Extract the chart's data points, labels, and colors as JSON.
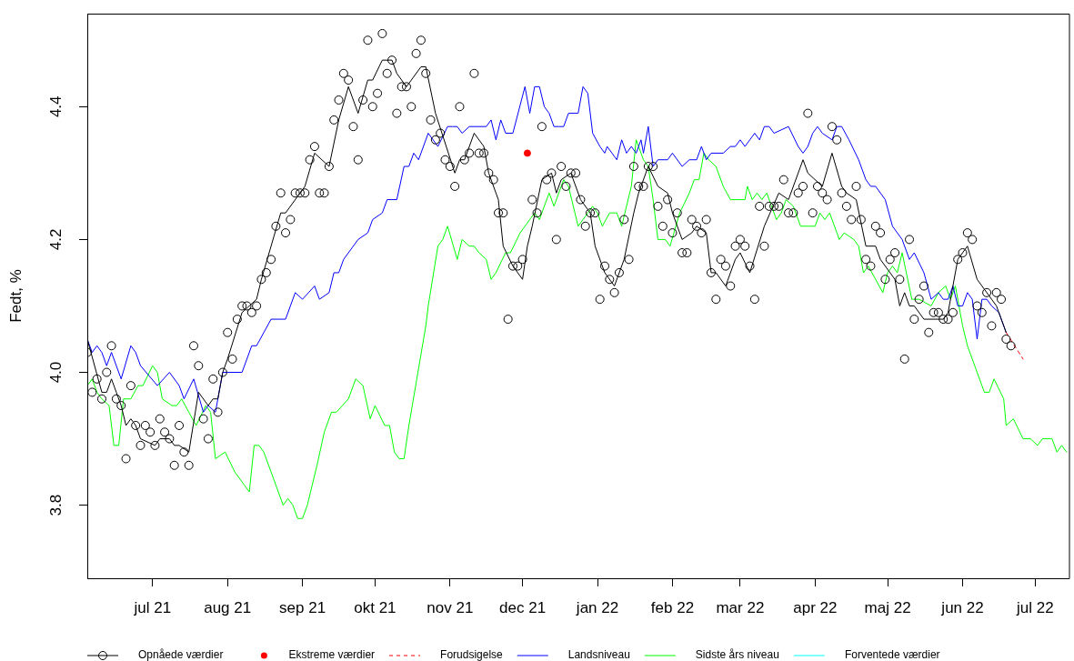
{
  "chart_data": {
    "type": "line",
    "ylabel": "Fedt, %",
    "xlim": [
      "2021-06-04",
      "2022-07-15"
    ],
    "xticks": [
      {
        "value": "2021-07-01",
        "label": "jul 21"
      },
      {
        "value": "2021-08-01",
        "label": "aug 21"
      },
      {
        "value": "2021-09-01",
        "label": "sep 21"
      },
      {
        "value": "2021-10-01",
        "label": "okt 21"
      },
      {
        "value": "2021-11-01",
        "label": "nov 21"
      },
      {
        "value": "2021-12-01",
        "label": "dec 21"
      },
      {
        "value": "2022-01-01",
        "label": "jan 22"
      },
      {
        "value": "2022-02-01",
        "label": "feb 22"
      },
      {
        "value": "2022-03-01",
        "label": "mar 22"
      },
      {
        "value": "2022-04-01",
        "label": "apr 22"
      },
      {
        "value": "2022-05-01",
        "label": "maj 22"
      },
      {
        "value": "2022-06-01",
        "label": "jun 22"
      },
      {
        "value": "2022-07-01",
        "label": "jul 22"
      }
    ],
    "ylim": [
      3.69,
      4.54
    ],
    "yticks": [
      3.8,
      {
        "value": 4,
        "label": "4.0"
      },
      4.2,
      4.4
    ],
    "legend": "bottom",
    "series": [
      {
        "name": "Opnåede værdier",
        "type": "scatter",
        "color": "#000000",
        "marker": "circle",
        "x": [
          "2021-06-04",
          "2021-06-06",
          "2021-06-08",
          "2021-06-10",
          "2021-06-12",
          "2021-06-14",
          "2021-06-16",
          "2021-06-18",
          "2021-06-20",
          "2021-06-22",
          "2021-06-24",
          "2021-06-26",
          "2021-06-28",
          "2021-06-30",
          "2021-07-02",
          "2021-07-04",
          "2021-07-06",
          "2021-07-08",
          "2021-07-10",
          "2021-07-12",
          "2021-07-14",
          "2021-07-16",
          "2021-07-18",
          "2021-07-20",
          "2021-07-22",
          "2021-07-24",
          "2021-07-26",
          "2021-07-28",
          "2021-07-30",
          "2021-08-01",
          "2021-08-03",
          "2021-08-05",
          "2021-08-07",
          "2021-08-09",
          "2021-08-11",
          "2021-08-13",
          "2021-08-15",
          "2021-08-17",
          "2021-08-19",
          "2021-08-21",
          "2021-08-23",
          "2021-08-25",
          "2021-08-27",
          "2021-08-29",
          "2021-08-31",
          "2021-09-02",
          "2021-09-04",
          "2021-09-06",
          "2021-09-08",
          "2021-09-10",
          "2021-09-12",
          "2021-09-14",
          "2021-09-16",
          "2021-09-18",
          "2021-09-20",
          "2021-09-22",
          "2021-09-24",
          "2021-09-26",
          "2021-09-28",
          "2021-09-30",
          "2021-10-02",
          "2021-10-04",
          "2021-10-06",
          "2021-10-08",
          "2021-10-10",
          "2021-10-12",
          "2021-10-14",
          "2021-10-16",
          "2021-10-18",
          "2021-10-20",
          "2021-10-22",
          "2021-10-24",
          "2021-10-26",
          "2021-10-28",
          "2021-10-30",
          "2021-11-01",
          "2021-11-03",
          "2021-11-05",
          "2021-11-07",
          "2021-11-09",
          "2021-11-11",
          "2021-11-13",
          "2021-11-15",
          "2021-11-17",
          "2021-11-19",
          "2021-11-21",
          "2021-11-23",
          "2021-11-25",
          "2021-11-27",
          "2021-11-29",
          "2021-12-01",
          "2021-12-03",
          "2021-12-05",
          "2021-12-07",
          "2021-12-09",
          "2021-12-11",
          "2021-12-13",
          "2021-12-15",
          "2021-12-17",
          "2021-12-19",
          "2021-12-21",
          "2021-12-23",
          "2021-12-25",
          "2021-12-27",
          "2021-12-29",
          "2021-12-31",
          "2022-01-02",
          "2022-01-04",
          "2022-01-06",
          "2022-01-08",
          "2022-01-10",
          "2022-01-12",
          "2022-01-14",
          "2022-01-16",
          "2022-01-18",
          "2022-01-20",
          "2022-01-22",
          "2022-01-24",
          "2022-01-26",
          "2022-01-28",
          "2022-01-30",
          "2022-02-01",
          "2022-02-03",
          "2022-02-05",
          "2022-02-07",
          "2022-02-09",
          "2022-02-11",
          "2022-02-13",
          "2022-02-15",
          "2022-02-17",
          "2022-02-19",
          "2022-02-21",
          "2022-02-23",
          "2022-02-25",
          "2022-02-27",
          "2022-03-01",
          "2022-03-03",
          "2022-03-05",
          "2022-03-07",
          "2022-03-09",
          "2022-03-11",
          "2022-03-13",
          "2022-03-15",
          "2022-03-17",
          "2022-03-19",
          "2022-03-21",
          "2022-03-23",
          "2022-03-25",
          "2022-03-27",
          "2022-03-29",
          "2022-03-31",
          "2022-04-02",
          "2022-04-04",
          "2022-04-06",
          "2022-04-08",
          "2022-04-10",
          "2022-04-12",
          "2022-04-14",
          "2022-04-16",
          "2022-04-18",
          "2022-04-20",
          "2022-04-22",
          "2022-04-24",
          "2022-04-26",
          "2022-04-28",
          "2022-04-30",
          "2022-05-02",
          "2022-05-04",
          "2022-05-06",
          "2022-05-08",
          "2022-05-10",
          "2022-05-12",
          "2022-05-14",
          "2022-05-16",
          "2022-05-18",
          "2022-05-20",
          "2022-05-22",
          "2022-05-24",
          "2022-05-26",
          "2022-05-28",
          "2022-05-30",
          "2022-06-01",
          "2022-06-03",
          "2022-06-05",
          "2022-06-07",
          "2022-06-09",
          "2022-06-11",
          "2022-06-13",
          "2022-06-15",
          "2022-06-17",
          "2022-06-19",
          "2022-06-21"
        ],
        "values": [
          4.03,
          3.97,
          3.99,
          3.96,
          4.0,
          4.04,
          3.96,
          3.95,
          3.87,
          3.98,
          3.92,
          3.89,
          3.92,
          3.91,
          3.89,
          3.93,
          3.91,
          3.9,
          3.86,
          3.92,
          3.88,
          3.86,
          4.04,
          4.01,
          3.93,
          3.9,
          3.99,
          3.94,
          4.0,
          4.06,
          4.02,
          4.08,
          4.1,
          4.1,
          4.09,
          4.1,
          4.14,
          4.15,
          4.17,
          4.22,
          4.27,
          4.21,
          4.23,
          4.27,
          4.27,
          4.27,
          4.32,
          4.34,
          4.27,
          4.27,
          4.31,
          4.38,
          4.41,
          4.45,
          4.44,
          4.37,
          4.32,
          4.41,
          4.5,
          4.4,
          4.42,
          4.51,
          4.45,
          4.47,
          4.39,
          4.43,
          4.43,
          4.4,
          4.48,
          4.5,
          4.45,
          4.38,
          4.35,
          4.36,
          4.32,
          4.31,
          4.28,
          4.4,
          4.32,
          4.33,
          4.45,
          4.33,
          4.33,
          4.3,
          4.29,
          4.24,
          4.24,
          4.08,
          4.16,
          4.16,
          4.17,
          null,
          4.26,
          4.24,
          4.37,
          4.29,
          4.3,
          4.2,
          4.31,
          4.28,
          4.3,
          4.3,
          4.26,
          4.22,
          4.24,
          4.24,
          4.11,
          4.16,
          4.14,
          4.12,
          4.15,
          4.23,
          4.17,
          4.31,
          4.28,
          4.28,
          4.31,
          4.31,
          4.25,
          4.22,
          4.26,
          4.21,
          4.24,
          4.18,
          4.18,
          4.23,
          4.22,
          4.21,
          4.23,
          4.15,
          4.11,
          4.17,
          4.16,
          4.13,
          4.19,
          4.2,
          4.19,
          4.16,
          4.11,
          4.25,
          4.19,
          4.25,
          4.25,
          4.25,
          4.29,
          4.24,
          4.24,
          4.27,
          4.28,
          4.39,
          4.24,
          4.28,
          4.27,
          4.26,
          4.37,
          4.35,
          4.27,
          4.25,
          4.23,
          4.28,
          4.23,
          4.17,
          4.16,
          4.22,
          4.21,
          4.14,
          4.17,
          4.18,
          4.14,
          4.02,
          4.2,
          4.08,
          4.11,
          4.13,
          4.06,
          4.09,
          4.09,
          4.08,
          4.08,
          4.09,
          4.17,
          4.18,
          4.21,
          4.2,
          4.1,
          4.09,
          4.12,
          4.07,
          4.12,
          4.11,
          4.05,
          4.04
        ]
      },
      {
        "color": "#000000",
        "x": [
          "2021-06-04",
          "2021-06-10",
          "2021-06-12",
          "2021-06-14",
          "2021-06-16",
          "2021-06-18",
          "2021-06-20",
          "2021-06-22",
          "2021-06-24",
          "2021-06-26",
          "2021-07-02",
          "2021-07-04",
          "2021-07-08",
          "2021-07-10",
          "2021-07-12",
          "2021-07-16",
          "2021-07-20",
          "2021-07-24",
          "2021-07-26",
          "2021-07-28",
          "2021-07-30",
          "2021-08-01",
          "2021-08-07",
          "2021-08-13",
          "2021-08-15",
          "2021-08-23",
          "2021-08-25",
          "2021-09-02",
          "2021-09-06",
          "2021-09-12",
          "2021-09-16",
          "2021-09-20",
          "2021-09-24",
          "2021-09-28",
          "2021-09-30",
          "2021-10-04",
          "2021-10-08",
          "2021-10-10",
          "2021-10-14",
          "2021-10-20",
          "2021-10-22",
          "2021-10-26",
          "2021-11-03",
          "2021-11-05",
          "2021-11-07",
          "2021-11-11",
          "2021-11-15",
          "2021-11-17",
          "2021-11-21",
          "2021-11-23",
          "2021-11-27",
          "2021-12-01",
          "2021-12-03",
          "2021-12-05",
          "2021-12-09",
          "2021-12-13",
          "2021-12-15",
          "2021-12-17",
          "2021-12-21",
          "2021-12-25",
          "2021-12-29",
          "2021-12-31",
          "2022-01-04",
          "2022-01-08",
          "2022-01-10",
          "2022-01-12",
          "2022-01-16",
          "2022-01-18",
          "2022-01-22",
          "2022-01-26",
          "2022-01-30",
          "2022-02-01",
          "2022-02-05",
          "2022-02-09",
          "2022-02-11",
          "2022-02-15",
          "2022-02-17",
          "2022-02-19",
          "2022-02-23",
          "2022-02-27",
          "2022-03-01",
          "2022-03-05",
          "2022-03-11",
          "2022-03-17",
          "2022-03-21",
          "2022-03-27",
          "2022-03-29",
          "2022-04-04",
          "2022-04-08",
          "2022-04-12",
          "2022-04-14",
          "2022-04-18",
          "2022-04-22",
          "2022-04-26",
          "2022-04-28",
          "2022-05-04",
          "2022-05-06",
          "2022-05-08",
          "2022-05-10",
          "2022-05-12",
          "2022-05-16",
          "2022-05-24",
          "2022-05-26",
          "2022-05-30",
          "2022-06-03",
          "2022-06-07",
          "2022-06-11",
          "2022-06-13",
          "2022-06-15",
          "2022-06-19"
        ],
        "values": [
          4.05,
          3.97,
          3.97,
          3.99,
          3.97,
          3.95,
          3.92,
          3.93,
          3.92,
          3.9,
          3.89,
          3.9,
          3.9,
          3.89,
          3.89,
          3.88,
          3.97,
          3.95,
          3.96,
          3.96,
          4.0,
          4.02,
          4.09,
          4.11,
          4.14,
          4.24,
          4.24,
          4.28,
          4.33,
          4.31,
          4.38,
          4.43,
          4.39,
          4.44,
          4.44,
          4.47,
          4.47,
          4.45,
          4.43,
          4.46,
          4.46,
          4.39,
          4.3,
          4.32,
          4.32,
          4.36,
          4.34,
          4.3,
          4.26,
          4.19,
          4.16,
          4.14,
          4.19,
          4.22,
          4.29,
          4.3,
          4.27,
          4.29,
          4.3,
          4.26,
          4.24,
          4.19,
          4.15,
          4.13,
          4.15,
          4.17,
          4.24,
          4.27,
          4.31,
          4.28,
          4.27,
          4.24,
          4.2,
          4.21,
          4.22,
          4.21,
          4.15,
          4.15,
          4.13,
          4.17,
          4.18,
          4.15,
          4.22,
          4.27,
          4.26,
          4.32,
          4.3,
          4.28,
          4.33,
          4.28,
          4.27,
          4.26,
          4.19,
          4.19,
          4.17,
          4.14,
          4.1,
          4.12,
          4.1,
          4.1,
          4.08,
          4.08,
          4.09,
          4.17,
          4.19,
          4.14,
          4.12,
          4.11,
          4.1,
          4.06
        ]
      },
      {
        "name": "Ekstreme værdier",
        "type": "scatter",
        "color": "#ff0000",
        "x": [
          "2021-12-03"
        ],
        "values": [
          4.33
        ]
      },
      {
        "name": "Forudsigelse",
        "color": "#ff0000",
        "line_style": "dashed",
        "x": [
          "2022-06-19",
          "2022-06-26"
        ],
        "values": [
          4.06,
          4.02
        ]
      },
      {
        "name": "Landsniveau",
        "color": "#0000ff",
        "x": [
          "2021-06-04",
          "2021-06-06",
          "2021-06-08",
          "2021-06-10",
          "2021-06-12",
          "2021-06-14",
          "2021-06-18",
          "2021-06-22",
          "2021-06-24",
          "2021-06-26",
          "2021-07-03",
          "2021-07-08",
          "2021-07-12",
          "2021-07-14",
          "2021-07-18",
          "2021-07-22",
          "2021-07-24",
          "2021-07-27",
          "2021-07-30",
          "2021-08-01",
          "2021-08-07",
          "2021-08-11",
          "2021-08-13",
          "2021-08-19",
          "2021-08-25",
          "2021-08-29",
          "2021-09-01",
          "2021-09-06",
          "2021-09-08",
          "2021-09-12",
          "2021-09-14",
          "2021-09-16",
          "2021-09-18",
          "2021-09-24",
          "2021-09-28",
          "2021-09-30",
          "2021-10-04",
          "2021-10-06",
          "2021-10-10",
          "2021-10-13",
          "2021-10-15",
          "2021-10-17",
          "2021-10-19",
          "2021-10-23",
          "2021-10-27",
          "2021-10-31",
          "2021-11-02",
          "2021-11-04",
          "2021-11-06",
          "2021-11-09",
          "2021-11-12",
          "2021-11-16",
          "2021-11-18",
          "2021-11-20",
          "2021-11-22",
          "2021-11-24",
          "2021-11-27",
          "2021-12-02",
          "2021-12-04",
          "2021-12-06",
          "2021-12-08",
          "2021-12-10",
          "2021-12-12",
          "2021-12-14",
          "2021-12-16",
          "2021-12-18",
          "2021-12-20",
          "2021-12-24",
          "2021-12-26",
          "2021-12-28",
          "2021-12-30",
          "2022-01-02",
          "2022-01-04",
          "2022-01-05",
          "2022-01-09",
          "2022-01-11",
          "2022-01-13",
          "2022-01-15",
          "2022-01-17",
          "2022-01-19",
          "2022-01-20",
          "2022-01-22",
          "2022-01-24",
          "2022-01-26",
          "2022-01-30",
          "2022-02-01",
          "2022-02-05",
          "2022-02-08",
          "2022-02-11",
          "2022-02-13",
          "2022-02-15",
          "2022-02-17",
          "2022-02-20",
          "2022-02-22",
          "2022-02-25",
          "2022-02-27",
          "2022-03-01",
          "2022-03-03",
          "2022-03-05",
          "2022-03-07",
          "2022-03-09",
          "2022-03-11",
          "2022-03-13",
          "2022-03-15",
          "2022-03-21",
          "2022-03-25",
          "2022-03-27",
          "2022-03-29",
          "2022-03-31",
          "2022-04-02",
          "2022-04-04",
          "2022-04-08",
          "2022-04-10",
          "2022-04-12",
          "2022-04-15",
          "2022-04-19",
          "2022-04-22",
          "2022-04-24",
          "2022-04-26",
          "2022-04-30",
          "2022-05-03",
          "2022-05-07",
          "2022-05-10",
          "2022-05-12",
          "2022-05-16",
          "2022-05-19",
          "2022-05-22",
          "2022-05-24",
          "2022-05-26",
          "2022-05-28",
          "2022-05-30",
          "2022-06-01",
          "2022-06-03",
          "2022-06-05",
          "2022-06-07",
          "2022-06-09",
          "2022-06-11",
          "2022-06-13",
          "2022-06-16",
          "2022-06-19"
        ],
        "values": [
          4.05,
          4.03,
          4.04,
          4.03,
          4.01,
          4.03,
          3.99,
          4.04,
          4.03,
          4.01,
          3.98,
          4.0,
          3.98,
          3.96,
          3.99,
          3.94,
          3.95,
          3.94,
          4.0,
          4.0,
          4.0,
          4.04,
          4.04,
          4.08,
          4.08,
          4.12,
          4.11,
          4.13,
          4.11,
          4.12,
          4.15,
          4.15,
          4.17,
          4.2,
          4.21,
          4.23,
          4.24,
          4.26,
          4.26,
          4.31,
          4.31,
          4.33,
          4.32,
          4.36,
          4.34,
          4.37,
          4.37,
          4.37,
          4.36,
          4.37,
          4.37,
          4.37,
          4.38,
          4.35,
          4.38,
          4.36,
          4.36,
          4.43,
          4.39,
          4.43,
          4.43,
          4.4,
          4.39,
          4.37,
          4.37,
          4.37,
          4.39,
          4.39,
          4.43,
          4.42,
          4.36,
          4.34,
          4.33,
          4.34,
          4.32,
          4.35,
          4.33,
          4.34,
          4.33,
          4.35,
          4.33,
          4.37,
          4.31,
          4.32,
          4.32,
          4.33,
          4.31,
          4.32,
          4.32,
          4.34,
          4.32,
          4.33,
          4.33,
          4.33,
          4.34,
          4.34,
          4.35,
          4.34,
          4.35,
          4.36,
          4.35,
          4.37,
          4.37,
          4.36,
          4.37,
          4.34,
          4.33,
          4.34,
          4.36,
          4.37,
          4.36,
          4.35,
          4.37,
          4.37,
          4.35,
          4.32,
          4.29,
          4.28,
          4.28,
          4.26,
          4.22,
          4.2,
          4.17,
          4.18,
          4.15,
          4.11,
          4.12,
          4.11,
          4.11,
          4.13,
          4.1,
          4.1,
          4.12,
          4.11,
          4.05,
          4.11,
          4.11,
          4.1,
          4.09,
          4.06
        ]
      },
      {
        "name": "Sidste års niveau",
        "color": "#00ff00",
        "x": [
          "2021-06-04",
          "2021-06-06",
          "2021-06-08",
          "2021-06-10",
          "2021-06-13",
          "2021-06-15",
          "2021-06-17",
          "2021-06-19",
          "2021-06-22",
          "2021-06-25",
          "2021-06-27",
          "2021-07-01",
          "2021-07-03",
          "2021-07-05",
          "2021-07-09",
          "2021-07-11",
          "2021-07-13",
          "2021-07-16",
          "2021-07-19",
          "2021-07-23",
          "2021-07-25",
          "2021-07-27",
          "2021-07-31",
          "2021-08-04",
          "2021-08-08",
          "2021-08-10",
          "2021-08-12",
          "2021-08-14",
          "2021-08-16",
          "2021-08-24",
          "2021-08-26",
          "2021-08-28",
          "2021-08-30",
          "2021-09-01",
          "2021-09-03",
          "2021-09-07",
          "2021-09-10",
          "2021-09-13",
          "2021-09-15",
          "2021-09-20",
          "2021-09-23",
          "2021-09-26",
          "2021-09-29",
          "2021-10-01",
          "2021-10-05",
          "2021-10-07",
          "2021-10-09",
          "2021-10-11",
          "2021-10-13",
          "2021-10-15",
          "2021-10-22",
          "2021-10-23",
          "2021-10-27",
          "2021-10-29",
          "2021-10-31",
          "2021-11-04",
          "2021-11-06",
          "2021-11-09",
          "2021-11-11",
          "2021-11-13",
          "2021-11-16",
          "2021-11-18",
          "2021-11-20",
          "2021-11-24",
          "2021-11-26",
          "2021-11-30",
          "2021-12-06",
          "2021-12-08",
          "2021-12-12",
          "2021-12-14",
          "2021-12-18",
          "2021-12-20",
          "2021-12-24",
          "2021-12-28",
          "2021-12-30",
          "2022-01-01",
          "2022-01-03",
          "2022-01-06",
          "2022-01-09",
          "2022-01-11",
          "2022-01-15",
          "2022-01-17",
          "2022-01-20",
          "2022-01-22",
          "2022-01-24",
          "2022-01-26",
          "2022-01-29",
          "2022-01-31",
          "2022-02-04",
          "2022-02-08",
          "2022-02-10",
          "2022-02-12",
          "2022-02-14",
          "2022-02-16",
          "2022-02-19",
          "2022-02-22",
          "2022-02-25",
          "2022-03-01",
          "2022-03-03",
          "2022-03-04",
          "2022-03-06",
          "2022-03-08",
          "2022-03-10",
          "2022-03-12",
          "2022-03-14",
          "2022-03-16",
          "2022-03-18",
          "2022-03-20",
          "2022-03-23",
          "2022-03-26",
          "2022-03-29",
          "2022-04-01",
          "2022-04-03",
          "2022-04-05",
          "2022-04-07",
          "2022-04-11",
          "2022-04-13",
          "2022-04-17",
          "2022-04-19",
          "2022-04-21",
          "2022-04-23",
          "2022-04-26",
          "2022-04-29",
          "2022-05-01",
          "2022-05-03",
          "2022-05-05",
          "2022-05-07",
          "2022-05-11",
          "2022-05-14",
          "2022-05-19",
          "2022-05-22",
          "2022-05-25",
          "2022-05-27",
          "2022-05-29",
          "2022-06-01",
          "2022-06-03",
          "2022-06-06",
          "2022-06-10",
          "2022-06-12",
          "2022-06-14",
          "2022-06-18",
          "2022-06-19",
          "2022-06-22",
          "2022-06-26",
          "2022-06-29",
          "2022-07-02",
          "2022-07-04",
          "2022-07-08",
          "2022-07-10",
          "2022-07-12",
          "2022-07-14"
        ],
        "values": [
          3.98,
          3.99,
          3.97,
          3.96,
          3.95,
          3.89,
          3.89,
          3.96,
          3.96,
          3.98,
          3.98,
          4.01,
          4.0,
          3.96,
          3.95,
          3.95,
          3.96,
          3.94,
          3.92,
          3.95,
          3.94,
          3.87,
          3.88,
          3.85,
          3.83,
          3.82,
          3.89,
          3.89,
          3.88,
          3.8,
          3.81,
          3.8,
          3.78,
          3.78,
          3.8,
          3.86,
          3.91,
          3.94,
          3.94,
          3.96,
          3.99,
          3.98,
          3.93,
          3.95,
          3.92,
          3.92,
          3.88,
          3.87,
          3.87,
          3.92,
          4.07,
          4.1,
          4.19,
          4.2,
          4.22,
          4.17,
          4.2,
          4.19,
          4.19,
          4.18,
          4.17,
          4.14,
          4.15,
          4.18,
          4.18,
          4.21,
          4.24,
          4.23,
          4.27,
          4.25,
          4.29,
          4.28,
          4.22,
          4.24,
          4.25,
          4.24,
          4.22,
          4.24,
          4.24,
          4.22,
          4.28,
          4.35,
          4.32,
          4.31,
          4.26,
          4.2,
          4.2,
          4.19,
          4.24,
          4.27,
          4.29,
          4.29,
          4.33,
          4.32,
          4.31,
          4.28,
          4.26,
          4.26,
          4.26,
          4.28,
          4.26,
          4.27,
          4.26,
          4.27,
          4.25,
          4.23,
          4.24,
          4.26,
          4.25,
          4.22,
          4.22,
          4.22,
          4.24,
          4.23,
          4.24,
          4.2,
          4.21,
          4.2,
          4.19,
          4.15,
          4.16,
          4.14,
          4.12,
          4.15,
          4.16,
          4.15,
          4.18,
          4.11,
          4.11,
          4.1,
          4.12,
          4.13,
          4.11,
          4.13,
          4.07,
          4.04,
          4.01,
          3.97,
          3.97,
          3.99,
          3.96,
          3.92,
          3.93,
          3.9,
          3.9,
          3.89,
          3.9,
          3.9,
          3.88,
          3.89,
          3.88
        ]
      },
      {
        "name": "Forventede værdier",
        "color": "#00ffff"
      }
    ]
  }
}
